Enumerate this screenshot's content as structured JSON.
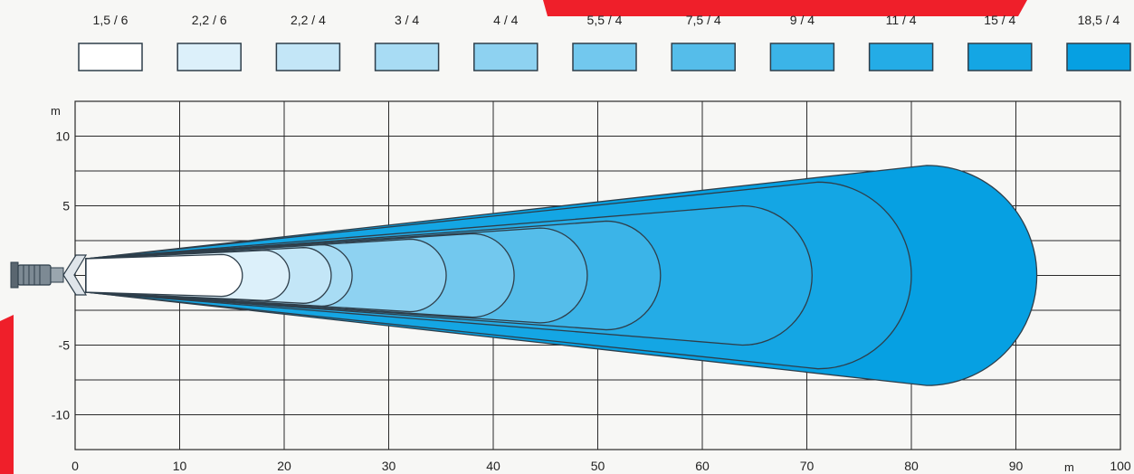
{
  "chart_data": {
    "type": "area",
    "title": "",
    "xlabel": "",
    "ylabel": "",
    "x_unit": "m",
    "y_unit": "m",
    "xlim": [
      0,
      100
    ],
    "ylim": [
      -12.5,
      12.5
    ],
    "x_ticks": [
      0,
      10,
      20,
      30,
      40,
      50,
      60,
      70,
      80,
      90,
      100
    ],
    "y_ticks": [
      10,
      5,
      0,
      -5,
      -10
    ],
    "y_tick_labels": [
      "10",
      "5",
      "",
      "-5",
      "-10"
    ],
    "grid": true,
    "legend_position": "top",
    "series": [
      {
        "name": "1,5 / 6",
        "reach_m": 16.0,
        "half_width_m": 1.5,
        "color": "#ffffff"
      },
      {
        "name": "2,2 / 6",
        "reach_m": 20.5,
        "half_width_m": 1.8,
        "color": "#dcf0fa"
      },
      {
        "name": "2,2 / 4",
        "reach_m": 24.5,
        "half_width_m": 2.0,
        "color": "#c3e6f7"
      },
      {
        "name": "3 / 4",
        "reach_m": 26.5,
        "half_width_m": 2.2,
        "color": "#a8dcf4"
      },
      {
        "name": "4 / 4",
        "reach_m": 35.5,
        "half_width_m": 2.6,
        "color": "#8ed2f1"
      },
      {
        "name": "5,5 / 4",
        "reach_m": 42.0,
        "half_width_m": 3.0,
        "color": "#72c8ee"
      },
      {
        "name": "7,5 / 4",
        "reach_m": 49.0,
        "half_width_m": 3.4,
        "color": "#55bdea"
      },
      {
        "name": "9 / 4",
        "reach_m": 56.0,
        "half_width_m": 3.9,
        "color": "#3bb4e8"
      },
      {
        "name": "11 / 4",
        "reach_m": 70.5,
        "half_width_m": 5.0,
        "color": "#24ace6"
      },
      {
        "name": "15 / 4",
        "reach_m": 80.0,
        "half_width_m": 6.7,
        "color": "#14a6e4"
      },
      {
        "name": "18,5 / 4",
        "reach_m": 92.0,
        "half_width_m": 7.9,
        "color": "#06a0e2"
      }
    ]
  },
  "colors": {
    "background": "#f7f7f5",
    "grid": "#2a2a2a",
    "outline": "#2e3e4a",
    "accent": "#ef1f2a"
  },
  "icons": [
    "floodlight-icon"
  ]
}
